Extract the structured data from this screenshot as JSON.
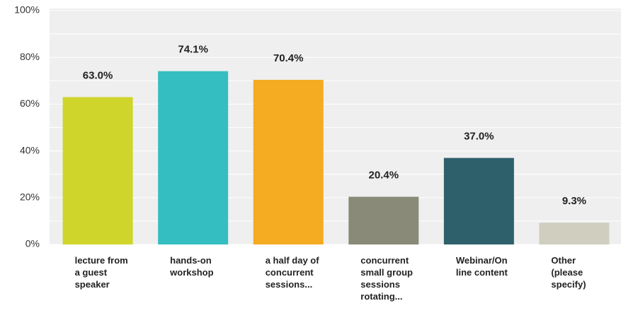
{
  "chart_data": {
    "type": "bar",
    "categories": [
      "lecture from a guest speaker",
      "hands-on workshop",
      "a half day of concurrent sessions...",
      "concurrent small group sessions rotating...",
      "Webinar/Online content",
      "Other (please specify)"
    ],
    "values": [
      63.0,
      74.1,
      70.4,
      20.4,
      37.0,
      9.3
    ],
    "value_labels": [
      "63.0%",
      "74.1%",
      "70.4%",
      "20.4%",
      "37.0%",
      "9.3%"
    ],
    "colors": [
      "#cfd52b",
      "#35bec1",
      "#f5ab22",
      "#898a77",
      "#2e606b",
      "#cfcebf"
    ],
    "ylim": [
      0,
      100
    ],
    "yticks": [
      {
        "value": 0,
        "label": "0%"
      },
      {
        "value": 20,
        "label": "20%"
      },
      {
        "value": 40,
        "label": "40%"
      },
      {
        "value": 60,
        "label": "60%"
      },
      {
        "value": 80,
        "label": "80%"
      },
      {
        "value": 100,
        "label": "100%"
      }
    ],
    "minor_yticks": [
      10,
      30,
      50,
      70,
      90
    ],
    "grid": true
  }
}
